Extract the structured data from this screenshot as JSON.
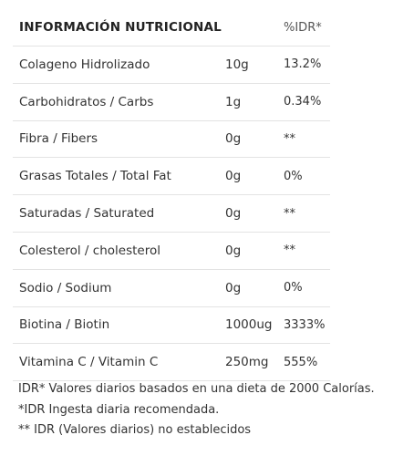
{
  "table": {
    "title": "INFORMACIÓN NUTRICIONAL",
    "amount_header": "",
    "idr_header": "%IDR*",
    "rows": [
      {
        "name": "Colageno Hidrolizado",
        "amount": "10g",
        "idr": "13.2%"
      },
      {
        "name": "Carbohidratos / Carbs",
        "amount": "1g",
        "idr": "0.34%"
      },
      {
        "name": "Fibra / Fibers",
        "amount": "0g",
        "idr": "**"
      },
      {
        "name": "Grasas Totales / Total Fat",
        "amount": "0g",
        "idr": "0%"
      },
      {
        "name": "Saturadas / Saturated",
        "amount": "0g",
        "idr": "**"
      },
      {
        "name": "Colesterol / cholesterol",
        "amount": "0g",
        "idr": "**"
      },
      {
        "name": "Sodio / Sodium",
        "amount": "0g",
        "idr": "0%"
      },
      {
        "name": "Biotina / Biotin",
        "amount": "1000ug",
        "idr": "3333%"
      },
      {
        "name": "Vitamina C / Vitamin C",
        "amount": "250mg",
        "idr": "555%"
      }
    ]
  },
  "notes": [
    "IDR* Valores diarios basados en una dieta de 2000 Calorías.",
    "*IDR Ingesta diaria recomendada.",
    "** IDR (Valores diarios) no establecidos"
  ]
}
